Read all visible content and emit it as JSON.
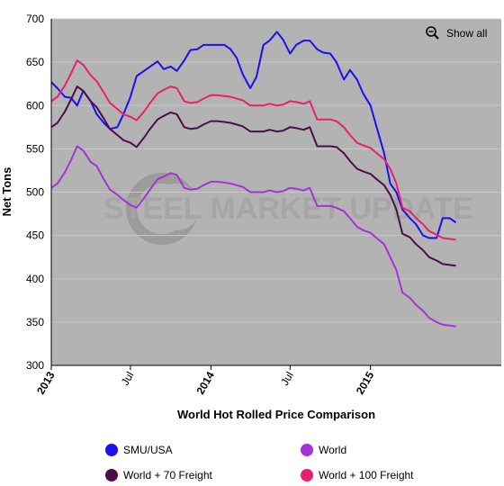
{
  "chart_data": {
    "type": "line",
    "title": "World Hot Rolled Price Comparison",
    "xlabel": "World Hot Rolled Price Comparison",
    "ylabel": "Net Tons",
    "ylim": [
      300,
      700
    ],
    "yticks": [
      300,
      350,
      400,
      450,
      500,
      550,
      600,
      650,
      700
    ],
    "xlim": [
      "2013-01-01",
      "2015-10-27"
    ],
    "xticks": [
      {
        "date": "2013-01-01",
        "label": "2013",
        "bold": true
      },
      {
        "date": "2013-07-01",
        "label": "Jul",
        "bold": false
      },
      {
        "date": "2014-01-01",
        "label": "2014",
        "bold": true
      },
      {
        "date": "2014-07-01",
        "label": "Jul",
        "bold": false
      },
      {
        "date": "2015-01-01",
        "label": "2015",
        "bold": true
      }
    ],
    "plot_background": "#b3b3b3",
    "legend_position": "bottom",
    "watermark": "STEEL MARKET UPDATE",
    "show_all_label": "Show all",
    "series": [
      {
        "name": "SMU/USA",
        "color": "#1a10f0",
        "points": [
          [
            "2013-01-01",
            627
          ],
          [
            "2013-01-15",
            620
          ],
          [
            "2013-02-01",
            610
          ],
          [
            "2013-02-15",
            609
          ],
          [
            "2013-03-01",
            600
          ],
          [
            "2013-03-15",
            617
          ],
          [
            "2013-04-01",
            605
          ],
          [
            "2013-04-15",
            590
          ],
          [
            "2013-05-01",
            580
          ],
          [
            "2013-05-15",
            573
          ],
          [
            "2013-06-01",
            575
          ],
          [
            "2013-06-15",
            590
          ],
          [
            "2013-07-01",
            610
          ],
          [
            "2013-07-15",
            634
          ],
          [
            "2013-08-01",
            640
          ],
          [
            "2013-08-15",
            645
          ],
          [
            "2013-09-01",
            651
          ],
          [
            "2013-09-15",
            642
          ],
          [
            "2013-10-01",
            645
          ],
          [
            "2013-10-15",
            640
          ],
          [
            "2013-11-01",
            652
          ],
          [
            "2013-11-15",
            664
          ],
          [
            "2013-12-01",
            665
          ],
          [
            "2013-12-15",
            670
          ],
          [
            "2014-01-01",
            670
          ],
          [
            "2014-01-15",
            670
          ],
          [
            "2014-02-01",
            670
          ],
          [
            "2014-02-15",
            665
          ],
          [
            "2014-03-01",
            655
          ],
          [
            "2014-03-15",
            636
          ],
          [
            "2014-04-01",
            620
          ],
          [
            "2014-04-15",
            633
          ],
          [
            "2014-05-01",
            670
          ],
          [
            "2014-05-15",
            675
          ],
          [
            "2014-06-01",
            685
          ],
          [
            "2014-06-15",
            676
          ],
          [
            "2014-07-01",
            660
          ],
          [
            "2014-07-15",
            670
          ],
          [
            "2014-08-01",
            675
          ],
          [
            "2014-08-15",
            675
          ],
          [
            "2014-09-01",
            665
          ],
          [
            "2014-09-15",
            661
          ],
          [
            "2014-10-01",
            660
          ],
          [
            "2014-10-15",
            650
          ],
          [
            "2014-11-01",
            630
          ],
          [
            "2014-11-15",
            641
          ],
          [
            "2014-12-01",
            630
          ],
          [
            "2014-12-15",
            614
          ],
          [
            "2015-01-01",
            600
          ],
          [
            "2015-01-15",
            575
          ],
          [
            "2015-02-01",
            545
          ],
          [
            "2015-02-15",
            510
          ],
          [
            "2015-03-01",
            500
          ],
          [
            "2015-03-15",
            480
          ],
          [
            "2015-04-01",
            470
          ],
          [
            "2015-04-15",
            463
          ],
          [
            "2015-05-01",
            450
          ],
          [
            "2015-05-15",
            447
          ],
          [
            "2015-06-01",
            447
          ],
          [
            "2015-06-15",
            470
          ],
          [
            "2015-07-01",
            470
          ],
          [
            "2015-07-15",
            465
          ]
        ]
      },
      {
        "name": "World",
        "color": "#a534d4",
        "points": [
          [
            "2013-01-01",
            505
          ],
          [
            "2013-01-15",
            510
          ],
          [
            "2013-02-01",
            523
          ],
          [
            "2013-02-15",
            537
          ],
          [
            "2013-03-01",
            553
          ],
          [
            "2013-03-15",
            548
          ],
          [
            "2013-04-01",
            535
          ],
          [
            "2013-04-15",
            530
          ],
          [
            "2013-05-01",
            515
          ],
          [
            "2013-05-15",
            503
          ],
          [
            "2013-06-01",
            497
          ],
          [
            "2013-06-15",
            491
          ],
          [
            "2013-07-01",
            485
          ],
          [
            "2013-07-15",
            482
          ],
          [
            "2013-08-01",
            493
          ],
          [
            "2013-08-15",
            503
          ],
          [
            "2013-09-01",
            515
          ],
          [
            "2013-09-15",
            518
          ],
          [
            "2013-10-01",
            522
          ],
          [
            "2013-10-15",
            520
          ],
          [
            "2013-11-01",
            505
          ],
          [
            "2013-11-15",
            503
          ],
          [
            "2013-12-01",
            504
          ],
          [
            "2013-12-15",
            508
          ],
          [
            "2014-01-01",
            512
          ],
          [
            "2014-01-15",
            512
          ],
          [
            "2014-02-01",
            511
          ],
          [
            "2014-02-15",
            510
          ],
          [
            "2014-03-01",
            508
          ],
          [
            "2014-03-15",
            506
          ],
          [
            "2014-04-01",
            500
          ],
          [
            "2014-04-15",
            500
          ],
          [
            "2014-05-01",
            500
          ],
          [
            "2014-05-15",
            502
          ],
          [
            "2014-06-01",
            500
          ],
          [
            "2014-06-15",
            501
          ],
          [
            "2014-07-01",
            505
          ],
          [
            "2014-07-15",
            504
          ],
          [
            "2014-08-01",
            502
          ],
          [
            "2014-08-15",
            505
          ],
          [
            "2014-09-01",
            484
          ],
          [
            "2014-09-15",
            484
          ],
          [
            "2014-10-01",
            484
          ],
          [
            "2014-10-15",
            482
          ],
          [
            "2014-11-01",
            478
          ],
          [
            "2014-11-15",
            470
          ],
          [
            "2014-12-01",
            460
          ],
          [
            "2014-12-15",
            456
          ],
          [
            "2015-01-01",
            453
          ],
          [
            "2015-01-15",
            447
          ],
          [
            "2015-02-01",
            440
          ],
          [
            "2015-02-15",
            425
          ],
          [
            "2015-03-01",
            410
          ],
          [
            "2015-03-15",
            384
          ],
          [
            "2015-04-01",
            378
          ],
          [
            "2015-04-15",
            370
          ],
          [
            "2015-05-01",
            363
          ],
          [
            "2015-05-15",
            355
          ],
          [
            "2015-06-01",
            350
          ],
          [
            "2015-06-15",
            347
          ],
          [
            "2015-07-01",
            346
          ],
          [
            "2015-07-15",
            345
          ]
        ]
      },
      {
        "name": "World + 70 Freight",
        "color": "#4a0f4a",
        "points": [
          [
            "2013-01-01",
            575
          ],
          [
            "2013-01-15",
            580
          ],
          [
            "2013-02-01",
            593
          ],
          [
            "2013-02-15",
            607
          ],
          [
            "2013-03-01",
            622
          ],
          [
            "2013-03-15",
            617
          ],
          [
            "2013-04-01",
            605
          ],
          [
            "2013-04-15",
            598
          ],
          [
            "2013-05-01",
            585
          ],
          [
            "2013-05-15",
            573
          ],
          [
            "2013-06-01",
            566
          ],
          [
            "2013-06-15",
            560
          ],
          [
            "2013-07-01",
            557
          ],
          [
            "2013-07-15",
            552
          ],
          [
            "2013-08-01",
            563
          ],
          [
            "2013-08-15",
            573
          ],
          [
            "2013-09-01",
            584
          ],
          [
            "2013-09-15",
            588
          ],
          [
            "2013-10-01",
            592
          ],
          [
            "2013-10-15",
            590
          ],
          [
            "2013-11-01",
            575
          ],
          [
            "2013-11-15",
            573
          ],
          [
            "2013-12-01",
            574
          ],
          [
            "2013-12-15",
            578
          ],
          [
            "2014-01-01",
            582
          ],
          [
            "2014-01-15",
            582
          ],
          [
            "2014-02-01",
            581
          ],
          [
            "2014-02-15",
            580
          ],
          [
            "2014-03-01",
            578
          ],
          [
            "2014-03-15",
            576
          ],
          [
            "2014-04-01",
            570
          ],
          [
            "2014-04-15",
            570
          ],
          [
            "2014-05-01",
            570
          ],
          [
            "2014-05-15",
            572
          ],
          [
            "2014-06-01",
            570
          ],
          [
            "2014-06-15",
            571
          ],
          [
            "2014-07-01",
            575
          ],
          [
            "2014-07-15",
            574
          ],
          [
            "2014-08-01",
            572
          ],
          [
            "2014-08-15",
            575
          ],
          [
            "2014-09-01",
            553
          ],
          [
            "2014-09-15",
            553
          ],
          [
            "2014-10-01",
            553
          ],
          [
            "2014-10-15",
            552
          ],
          [
            "2014-11-01",
            545
          ],
          [
            "2014-11-15",
            536
          ],
          [
            "2014-12-01",
            527
          ],
          [
            "2014-12-15",
            524
          ],
          [
            "2015-01-01",
            521
          ],
          [
            "2015-01-15",
            515
          ],
          [
            "2015-02-01",
            508
          ],
          [
            "2015-02-15",
            497
          ],
          [
            "2015-03-01",
            480
          ],
          [
            "2015-03-15",
            452
          ],
          [
            "2015-04-01",
            448
          ],
          [
            "2015-04-15",
            440
          ],
          [
            "2015-05-01",
            433
          ],
          [
            "2015-05-15",
            425
          ],
          [
            "2015-06-01",
            421
          ],
          [
            "2015-06-15",
            417
          ],
          [
            "2015-07-01",
            416
          ],
          [
            "2015-07-15",
            415
          ]
        ]
      },
      {
        "name": "World + 100 Freight",
        "color": "#e8206e",
        "points": [
          [
            "2013-01-01",
            605
          ],
          [
            "2013-01-15",
            610
          ],
          [
            "2013-02-01",
            623
          ],
          [
            "2013-02-15",
            637
          ],
          [
            "2013-03-01",
            652
          ],
          [
            "2013-03-15",
            647
          ],
          [
            "2013-04-01",
            635
          ],
          [
            "2013-04-15",
            628
          ],
          [
            "2013-05-01",
            615
          ],
          [
            "2013-05-15",
            603
          ],
          [
            "2013-06-01",
            596
          ],
          [
            "2013-06-15",
            590
          ],
          [
            "2013-07-01",
            587
          ],
          [
            "2013-07-15",
            583
          ],
          [
            "2013-08-01",
            593
          ],
          [
            "2013-08-15",
            603
          ],
          [
            "2013-09-01",
            614
          ],
          [
            "2013-09-15",
            618
          ],
          [
            "2013-10-01",
            622
          ],
          [
            "2013-10-15",
            620
          ],
          [
            "2013-11-01",
            605
          ],
          [
            "2013-11-15",
            603
          ],
          [
            "2013-12-01",
            604
          ],
          [
            "2013-12-15",
            608
          ],
          [
            "2014-01-01",
            612
          ],
          [
            "2014-01-15",
            612
          ],
          [
            "2014-02-01",
            611
          ],
          [
            "2014-02-15",
            610
          ],
          [
            "2014-03-01",
            608
          ],
          [
            "2014-03-15",
            606
          ],
          [
            "2014-04-01",
            600
          ],
          [
            "2014-04-15",
            600
          ],
          [
            "2014-05-01",
            600
          ],
          [
            "2014-05-15",
            602
          ],
          [
            "2014-06-01",
            600
          ],
          [
            "2014-06-15",
            601
          ],
          [
            "2014-07-01",
            605
          ],
          [
            "2014-07-15",
            604
          ],
          [
            "2014-08-01",
            602
          ],
          [
            "2014-08-15",
            605
          ],
          [
            "2014-09-01",
            584
          ],
          [
            "2014-09-15",
            584
          ],
          [
            "2014-10-01",
            584
          ],
          [
            "2014-10-15",
            582
          ],
          [
            "2014-11-01",
            575
          ],
          [
            "2014-11-15",
            566
          ],
          [
            "2014-12-01",
            557
          ],
          [
            "2014-12-15",
            554
          ],
          [
            "2015-01-01",
            551
          ],
          [
            "2015-01-15",
            545
          ],
          [
            "2015-02-01",
            538
          ],
          [
            "2015-02-15",
            527
          ],
          [
            "2015-03-01",
            510
          ],
          [
            "2015-03-15",
            482
          ],
          [
            "2015-04-01",
            478
          ],
          [
            "2015-04-15",
            470
          ],
          [
            "2015-05-01",
            463
          ],
          [
            "2015-05-15",
            455
          ],
          [
            "2015-06-01",
            451
          ],
          [
            "2015-06-15",
            447
          ],
          [
            "2015-07-01",
            446
          ],
          [
            "2015-07-15",
            445
          ]
        ]
      }
    ]
  }
}
